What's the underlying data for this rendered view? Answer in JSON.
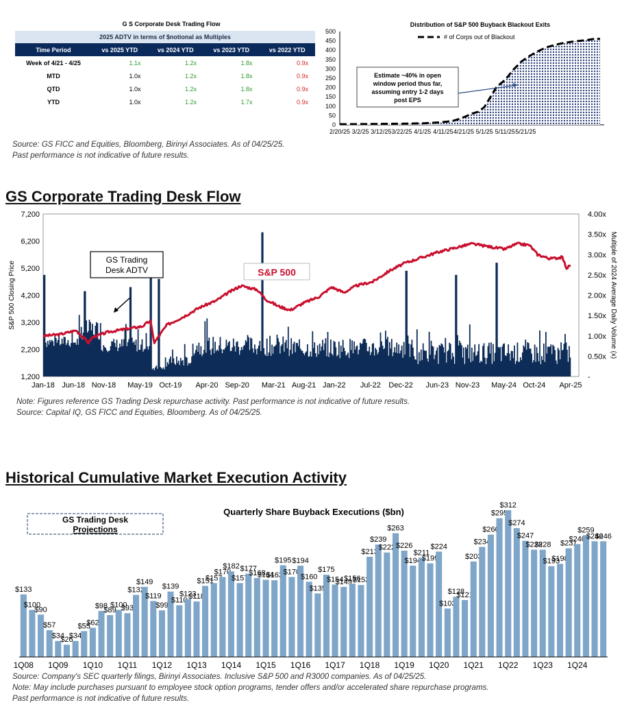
{
  "table": {
    "title": "G S Corporate Desk Trading Flow",
    "subheader": "2025 ADTV in terms of $notional as Multiples",
    "columns": [
      "Time Period",
      "vs 2025 YTD",
      "vs 2024 YTD",
      "vs 2023 YTD",
      "vs 2022 YTD"
    ],
    "rows": [
      {
        "period": "Week of 4/21 - 4/25",
        "c1": "1.1x",
        "c2": "1.2x",
        "c3": "1.8x",
        "c4": "0.9x"
      },
      {
        "period": "MTD",
        "c1": "1.0x",
        "c2": "1.2x",
        "c3": "1.8x",
        "c4": "0.9x"
      },
      {
        "period": "QTD",
        "c1": "1.0x",
        "c2": "1.2x",
        "c3": "1.8x",
        "c4": "0.9x"
      },
      {
        "period": "YTD",
        "c1": "1.0x",
        "c2": "1.2x",
        "c3": "1.7x",
        "c4": "0.9x"
      }
    ]
  },
  "source1": "Source: GS FICC and Equities, Bloomberg, Birinyi Associates. As of 04/25/25.",
  "source1b": "Past performance is not indicative of future results.",
  "section2_title": "GS Corporate Trading Desk Flow",
  "note2a": "Note: Figures reference GS Trading Desk repurchase activity. Past performance is not indicative of future results.",
  "note2b": "Source: Capital IQ, GS FICC and Equities, Bloomberg. As of 04/25/25.",
  "section3_title": "Historical Cumulative Market Execution Activity",
  "note3a": "Source: Company's SEC quarterly filings, Birinyi Associates. Inclusive S&P 500 and R3000 companies. As of 04/25/25.",
  "note3b": "Note: May include purchases pursuant to employee stock option programs, tender offers and/or accelerated share repurchase programs.",
  "note3c": "Past performance is not indicative of future results.",
  "chart_data": [
    {
      "type": "area",
      "title": "Distribution of S&P 500 Buyback Blackout Exits",
      "legend": "# of Corps out of Blackout",
      "annotation": "Estimate ~40% in open window period thus far, assuming entry 1-2 days post EPS",
      "x_ticks": [
        "2/20/25",
        "3/2/25",
        "3/12/25",
        "3/22/25",
        "4/1/25",
        "4/11/25",
        "4/21/25",
        "5/1/25",
        "5/11/25",
        "5/21/25"
      ],
      "y_ticks": [
        "0",
        "50",
        "100",
        "150",
        "200",
        "250",
        "300",
        "350",
        "400",
        "450",
        "500"
      ],
      "ylim": [
        0,
        500
      ],
      "x_day": [
        0,
        10,
        20,
        30,
        40,
        44,
        48,
        52,
        55,
        58,
        61,
        64,
        67,
        70,
        73,
        76,
        80,
        84,
        88,
        92,
        96,
        100,
        104,
        108,
        112,
        116,
        120,
        124,
        126
      ],
      "y": [
        3,
        4,
        5,
        6,
        8,
        10,
        13,
        17,
        22,
        32,
        45,
        60,
        70,
        95,
        150,
        205,
        240,
        295,
        340,
        370,
        395,
        415,
        428,
        438,
        445,
        450,
        455,
        462,
        460
      ]
    },
    {
      "type": "bar",
      "title": "S&P 500",
      "y_left_label": "S&P 500 Closing Price",
      "y_right_label": "Multiple of 2024 Average Daily Volume (x)",
      "series_labels": [
        "GS Trading Desk ADTV",
        "S&P 500"
      ],
      "x_ticks": [
        "Jan-18",
        "Jun-18",
        "Nov-18",
        "May-19",
        "Oct-19",
        "Apr-20",
        "Sep-20",
        "Mar-21",
        "Aug-21",
        "Jan-22",
        "Jul-22",
        "Dec-22",
        "Jun-23",
        "Nov-23",
        "May-24",
        "Oct-24",
        "Apr-25"
      ],
      "y_left_ticks": [
        "1,200",
        "2,200",
        "3,200",
        "4,200",
        "5,200",
        "6,200",
        "7,200"
      ],
      "y_right_ticks": [
        "-",
        "0.50x",
        "1.00x",
        "1.50x",
        "2.00x",
        "2.50x",
        "3.00x",
        "3.50x",
        "4.00x"
      ],
      "ylim_left": [
        1200,
        7200
      ],
      "ylim_right": [
        0,
        4
      ],
      "sp500_months": [
        0,
        4,
        8,
        11,
        12,
        16,
        20,
        24,
        26,
        27,
        30,
        34,
        38,
        42,
        45,
        48,
        52,
        54,
        57,
        60,
        63,
        67,
        70,
        73,
        76,
        80,
        84,
        88,
        92,
        96,
        100,
        104,
        108,
        112,
        115,
        118,
        120,
        123,
        126,
        127,
        128
      ],
      "sp500_values": [
        2700,
        2750,
        2900,
        2450,
        2650,
        2850,
        2950,
        3050,
        3250,
        2450,
        3100,
        3400,
        3750,
        4000,
        4300,
        4550,
        4400,
        4050,
        3800,
        3650,
        3900,
        4150,
        4500,
        4300,
        4550,
        4700,
        5100,
        5400,
        5600,
        5800,
        5950,
        6100,
        6000,
        5900,
        6100,
        6050,
        5700,
        5550,
        5600,
        5200,
        5300
      ],
      "volume_peaks_month": [
        0,
        10,
        21,
        26,
        28,
        53,
        88,
        100,
        110
      ],
      "volume_peaks_value": [
        2.5,
        2.1,
        2.2,
        3.0,
        2.4,
        3.55,
        2.6,
        2.5,
        2.8
      ]
    },
    {
      "type": "bar",
      "title": "Quarterly Share Buyback Executions ($bn)",
      "legend_box": "GS Trading Desk Projections",
      "x_ticks": [
        "1Q08",
        "1Q09",
        "1Q10",
        "1Q11",
        "1Q12",
        "1Q13",
        "1Q14",
        "1Q15",
        "1Q16",
        "1Q17",
        "1Q18",
        "1Q19",
        "1Q20",
        "1Q21",
        "1Q22",
        "1Q23",
        "1Q24"
      ],
      "values": [
        133,
        100,
        90,
        57,
        34,
        26,
        34,
        55,
        62,
        98,
        89,
        100,
        93,
        132,
        149,
        119,
        99,
        139,
        110,
        123,
        118,
        151,
        157,
        170,
        182,
        157,
        177,
        168,
        164,
        163,
        195,
        170,
        194,
        160,
        135,
        175,
        154,
        149,
        156,
        153,
        213,
        239,
        222,
        263,
        226,
        194,
        211,
        199,
        224,
        103,
        128,
        121,
        203,
        234,
        260,
        295,
        312,
        274,
        247,
        228,
        228,
        193,
        198,
        231,
        240,
        259,
        246,
        246
      ],
      "labels": [
        "$133",
        "$100",
        "$90",
        "$57",
        "$34",
        "$26",
        "$34",
        "$55",
        "$62",
        "$98",
        "$89",
        "$100",
        "$93",
        "$132",
        "$149",
        "$119",
        "$99",
        "$139",
        "$110",
        "$123",
        "$118",
        "$151",
        "$157",
        "$170",
        "$182",
        "$157",
        "$177",
        "$168",
        "$164",
        "$163",
        "$195",
        "$170",
        "$194",
        "$160",
        "$135",
        "$175",
        "$154",
        "$149",
        "$156",
        "$153",
        "$213",
        "$239",
        "$222",
        "$263",
        "$226",
        "$194",
        "$211",
        "$199",
        "$224",
        "$103",
        "$128",
        "$121",
        "$203",
        "$234",
        "$260",
        "$295",
        "$312",
        "$274",
        "$247",
        "$228",
        "$228",
        "$193",
        "$198",
        "$231",
        "$240",
        "$259",
        "$246",
        "$246"
      ]
    }
  ]
}
